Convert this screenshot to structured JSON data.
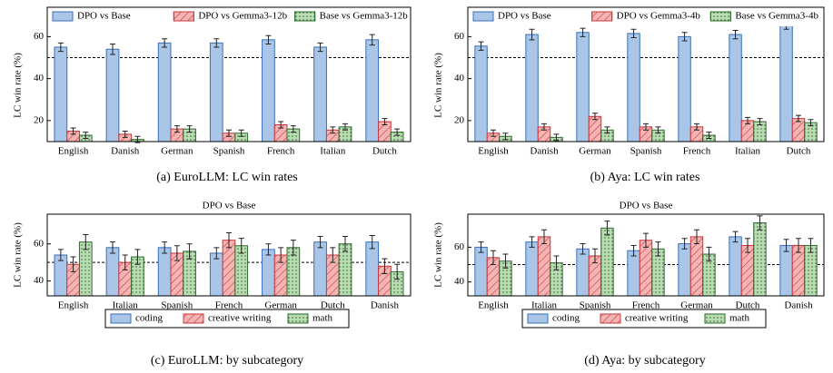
{
  "chart_data": [
    {
      "type": "bar",
      "caption": "(a) EuroLLM: LC win rates",
      "ylabel": "LC win rate (%)",
      "categories": [
        "English",
        "Danish",
        "German",
        "Spanish",
        "French",
        "Italian",
        "Dutch"
      ],
      "series": [
        {
          "name": "DPO vs Base",
          "color": "#a9c6e8",
          "values": [
            55,
            54,
            57,
            57,
            58.5,
            55,
            58.5
          ],
          "errors": [
            2,
            2.5,
            2,
            2,
            2,
            2,
            2.5
          ]
        },
        {
          "name": "DPO vs Gemma3-12b",
          "color": "#f4b4b4",
          "values": [
            15,
            13.5,
            16,
            14,
            18,
            15.5,
            19.5
          ],
          "errors": [
            1.5,
            1.5,
            1.5,
            1.5,
            1.5,
            1.5,
            1.5
          ]
        },
        {
          "name": "Base vs Gemma3-12b",
          "color": "#b9dcb2",
          "values": [
            13,
            11,
            16,
            14,
            16,
            17,
            14.5
          ],
          "errors": [
            1.5,
            1.5,
            1.5,
            1.5,
            1.5,
            1.5,
            1.5
          ]
        }
      ],
      "ylim": [
        10,
        74
      ],
      "yticks": [
        20,
        40,
        60
      ],
      "reference_line": 50,
      "legend": "top"
    },
    {
      "type": "bar",
      "caption": "(b) Aya: LC win rates",
      "ylabel": "LC win rate (%)",
      "categories": [
        "English",
        "Danish",
        "German",
        "Spanish",
        "French",
        "Italian",
        "Dutch"
      ],
      "series": [
        {
          "name": "DPO vs Base",
          "color": "#a9c6e8",
          "values": [
            55.5,
            61,
            62,
            61.5,
            60,
            61,
            66
          ],
          "errors": [
            2,
            2.5,
            2,
            2,
            2,
            2,
            2.5
          ]
        },
        {
          "name": "DPO vs Gemma3-4b",
          "color": "#f4b4b4",
          "values": [
            14,
            17,
            22,
            17,
            17,
            20,
            21
          ],
          "errors": [
            1.5,
            1.5,
            1.5,
            1.5,
            1.5,
            1.5,
            1.5
          ]
        },
        {
          "name": "Base vs Gemma3-4b",
          "color": "#b9dcb2",
          "values": [
            12.5,
            12,
            15.5,
            15.5,
            13,
            19.5,
            19
          ],
          "errors": [
            1.5,
            1.5,
            1.5,
            1.5,
            1.5,
            1.5,
            1.5
          ]
        }
      ],
      "ylim": [
        10,
        74
      ],
      "yticks": [
        20,
        40,
        60
      ],
      "reference_line": 50,
      "legend": "top"
    },
    {
      "type": "bar",
      "title": "DPO vs Base",
      "caption": "(c) EuroLLM: by subcategory",
      "ylabel": "LC win rate (%)",
      "categories": [
        "English",
        "Italian",
        "Spanish",
        "French",
        "German",
        "Dutch",
        "Danish"
      ],
      "series": [
        {
          "name": "coding",
          "color": "#a9c6e8",
          "values": [
            54,
            58,
            58,
            55,
            57,
            61,
            61
          ],
          "errors": [
            3,
            3,
            3,
            3,
            3,
            3,
            3.5
          ]
        },
        {
          "name": "creative writing",
          "color": "#f4b4b4",
          "values": [
            49,
            50,
            55,
            62,
            54,
            54,
            48
          ],
          "errors": [
            4,
            4,
            4,
            4,
            4,
            4,
            4
          ]
        },
        {
          "name": "math",
          "color": "#b9dcb2",
          "values": [
            61,
            53,
            56,
            59,
            58,
            60,
            45
          ],
          "errors": [
            4,
            4,
            4,
            4,
            4,
            4,
            4
          ]
        }
      ],
      "ylim": [
        32,
        76
      ],
      "yticks": [
        40,
        60
      ],
      "reference_line": 50,
      "legend": "bottom"
    },
    {
      "type": "bar",
      "title": "DPO vs Base",
      "caption": "(d) Aya: by subcategory",
      "ylabel": "LC win rate (%)",
      "categories": [
        "English",
        "Italian",
        "Spanish",
        "French",
        "German",
        "Dutch",
        "Danish"
      ],
      "series": [
        {
          "name": "coding",
          "color": "#a9c6e8",
          "values": [
            60,
            63,
            59,
            58,
            62,
            66,
            61
          ],
          "errors": [
            3,
            3,
            3,
            3,
            3,
            3,
            3.5
          ]
        },
        {
          "name": "creative writing",
          "color": "#f4b4b4",
          "values": [
            54,
            66,
            55,
            64,
            66,
            61,
            61
          ],
          "errors": [
            4,
            4,
            4,
            4,
            4,
            4,
            4
          ]
        },
        {
          "name": "math",
          "color": "#b9dcb2",
          "values": [
            52,
            51,
            71,
            59,
            56,
            74,
            61
          ],
          "errors": [
            4,
            4,
            4,
            4,
            4,
            4,
            4
          ]
        }
      ],
      "ylim": [
        32,
        79
      ],
      "yticks": [
        40,
        60
      ],
      "reference_line": 50,
      "legend": "bottom"
    }
  ]
}
